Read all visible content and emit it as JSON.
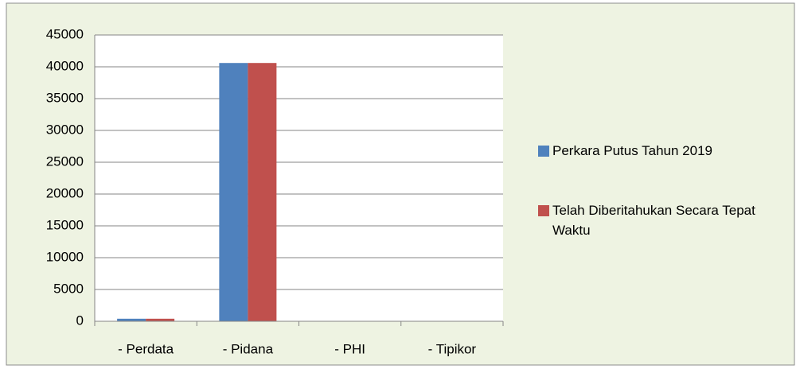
{
  "chart_data": {
    "type": "bar",
    "categories": [
      "- Perdata",
      "- Pidana",
      "- PHI",
      "- Tipikor"
    ],
    "series": [
      {
        "name": "Perkara Putus Tahun 2019",
        "color": "#4f81bd",
        "values": [
          400,
          40600,
          0,
          0
        ]
      },
      {
        "name": "Telah Diberitahukan Secara Tepat Waktu",
        "color": "#c0504d",
        "values": [
          400,
          40600,
          0,
          0
        ]
      }
    ],
    "ylim": [
      0,
      45000
    ],
    "yticks": [
      0,
      5000,
      10000,
      15000,
      20000,
      25000,
      30000,
      35000,
      40000,
      45000
    ],
    "grid": true,
    "legend": "right"
  }
}
